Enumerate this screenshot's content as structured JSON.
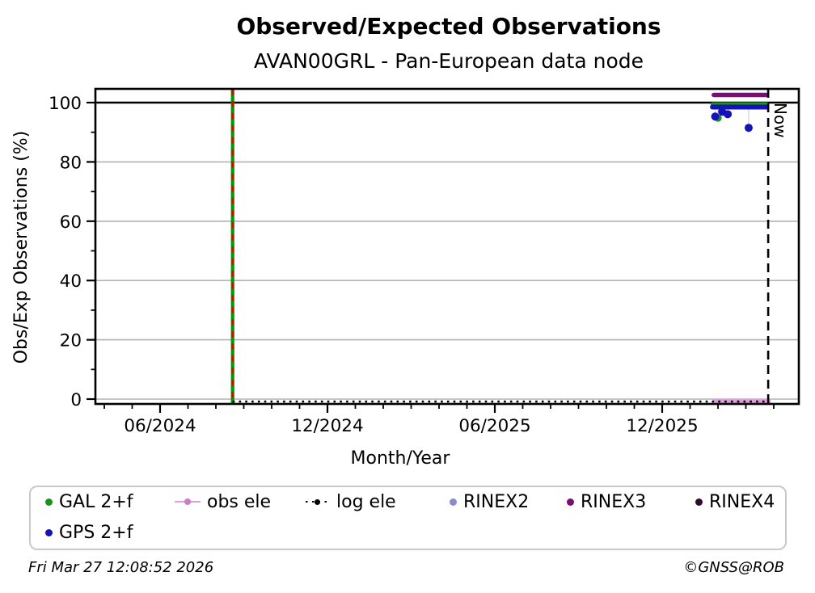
{
  "footer": {
    "timestamp": "Fri Mar 27 12:08:52 2026",
    "copyright": "©GNSS@ROB"
  },
  "legend": {
    "items": [
      {
        "label": "GAL 2+f",
        "color": "#18941b",
        "type": "point"
      },
      {
        "label": "obs ele",
        "color": "#dda0dd",
        "dot_color": "#c77ec7",
        "type": "linepoint"
      },
      {
        "label": "log ele",
        "color": "#000000",
        "type": "dotted_linepoint"
      },
      {
        "label": "RINEX2",
        "color": "#8a8ace",
        "type": "point"
      },
      {
        "label": "RINEX3",
        "color": "#7a0d7a",
        "type": "point"
      },
      {
        "label": "RINEX4",
        "color": "#2e0b2e",
        "type": "point"
      },
      {
        "label": "GPS 2+f",
        "color": "#1414b4",
        "type": "point"
      }
    ]
  },
  "chart_data": {
    "type": "scatter",
    "title": "Observed/Expected Observations",
    "subtitle": "AVAN00GRL - Pan-European data node",
    "xlabel": "Month/Year",
    "ylabel": "Obs/Exp Observations (%)",
    "grid": "horizontal-only",
    "legend_position": "below-plot",
    "x_axis": {
      "unit": "months since 2024-06",
      "range": [
        -2.3,
        22.9
      ],
      "major_ticks": [
        {
          "t": 0,
          "label": "06/2024"
        },
        {
          "t": 6,
          "label": "12/2024"
        },
        {
          "t": 12,
          "label": "06/2025"
        },
        {
          "t": 18,
          "label": "12/2025"
        }
      ],
      "minor_tick_every_months": 1
    },
    "y_axis": {
      "range": [
        -1.8,
        104.7
      ],
      "major_ticks": [
        0,
        20,
        40,
        60,
        80,
        100
      ],
      "minor_ticks": [
        10,
        30,
        50,
        70,
        90
      ],
      "gridlines": [
        0,
        20,
        40,
        60,
        80
      ]
    },
    "reference_lines": [
      {
        "type": "hline",
        "y": 100,
        "color": "#000000",
        "style": "solid"
      }
    ],
    "vlines": [
      {
        "t": 2.6,
        "date": "2024-08-20",
        "style": "solid-with-dashes",
        "colors": [
          "#009a00",
          "#e00000"
        ],
        "label": ""
      },
      {
        "t": 21.8,
        "date": "2026-03-27",
        "style": "dashed",
        "color": "#000000",
        "label": "Now"
      }
    ],
    "series": [
      {
        "name": "RINEX3",
        "color": "#7a0d7a",
        "style": "thick_line",
        "y": 102.6,
        "t_start": 19.85,
        "t_end": 21.75
      },
      {
        "name": "GAL 2+f",
        "color": "#18941b",
        "style": "points_row",
        "y": 99.5,
        "t_start": 19.8,
        "t_end": 21.75,
        "outliers": [
          {
            "t": 20.0,
            "y": 94.8
          }
        ]
      },
      {
        "name": "GPS 2+f",
        "color": "#1414b4",
        "style": "points_row",
        "y": 98.5,
        "t_start": 19.8,
        "t_end": 21.75,
        "outliers": [
          {
            "t": 19.9,
            "y": 95.3
          },
          {
            "t": 20.15,
            "y": 96.9
          },
          {
            "t": 20.35,
            "y": 96.1
          },
          {
            "t": 21.1,
            "y": 91.5
          }
        ]
      },
      {
        "name": "obs ele",
        "color": "#dda0dd",
        "style": "thick_line",
        "y": 0,
        "t_start": 19.9,
        "t_end": 21.8
      },
      {
        "name": "log ele",
        "color": "#000000",
        "style": "dotted_line",
        "y": 0,
        "t_start": 2.6,
        "t_end": 21.8
      }
    ]
  }
}
